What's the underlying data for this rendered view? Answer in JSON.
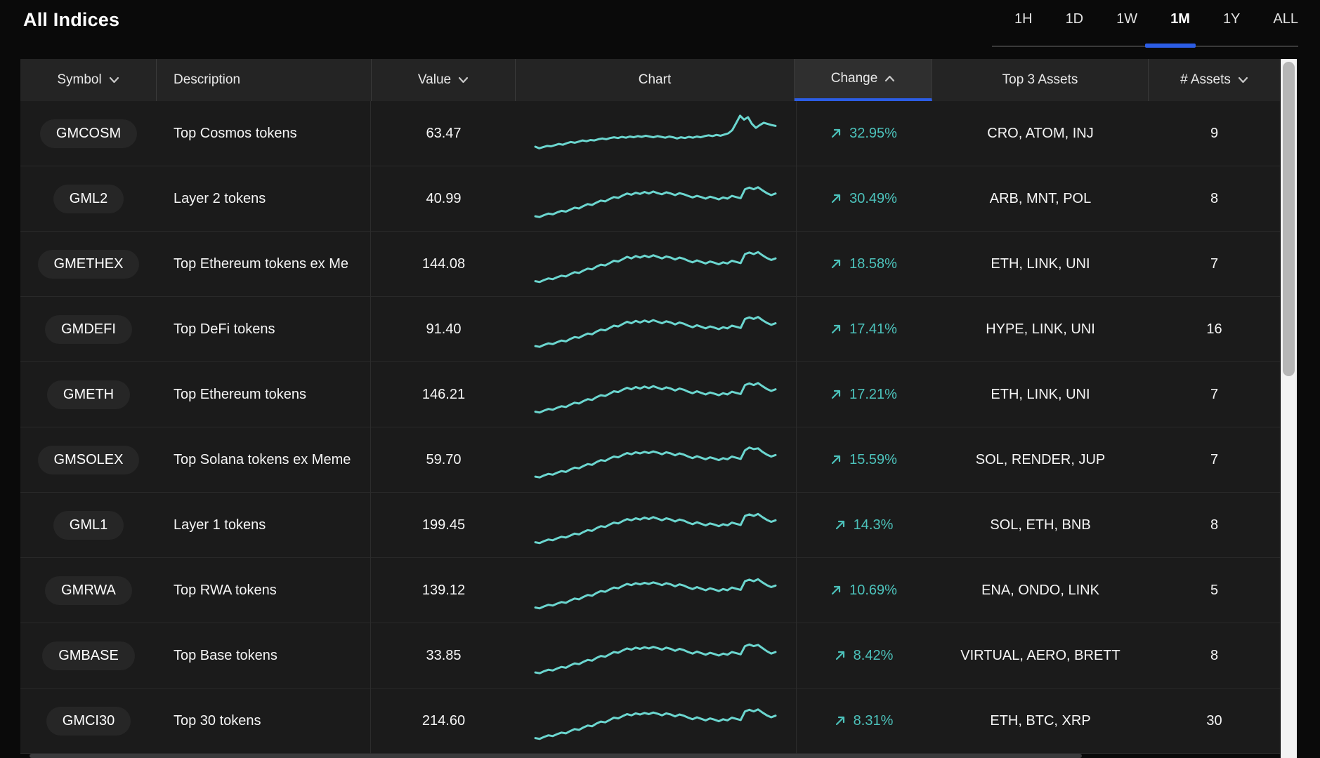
{
  "title": "All Indices",
  "timeframes": {
    "options": [
      "1H",
      "1D",
      "1W",
      "1M",
      "1Y",
      "ALL"
    ],
    "active": "1M"
  },
  "colors": {
    "accent": "#2c5de5",
    "change_positive": "#4cc2bb",
    "sparkline": "#6bd6cf",
    "header_bg": "#242424",
    "row_bg": "#1b1b1b",
    "page_bg": "#0a0a0a"
  },
  "table": {
    "columns": [
      {
        "label": "Symbol",
        "sort": "desc",
        "active": false
      },
      {
        "label": "Description",
        "sort": "",
        "active": false
      },
      {
        "label": "Value",
        "sort": "desc",
        "active": false
      },
      {
        "label": "Chart",
        "sort": "",
        "active": false
      },
      {
        "label": "Change",
        "sort": "asc",
        "active": true
      },
      {
        "label": "Top 3 Assets",
        "sort": "",
        "active": false
      },
      {
        "label": "# Assets",
        "sort": "desc",
        "active": false
      }
    ],
    "rows": [
      {
        "symbol": "GMCOSM",
        "description": "Top Cosmos tokens",
        "value": "63.47",
        "trend": "up",
        "change": "32.95%",
        "top3": "CRO, ATOM, INJ",
        "assets": "9",
        "spark": [
          16,
          12,
          15,
          18,
          17,
          20,
          23,
          21,
          25,
          28,
          26,
          29,
          32,
          30,
          33,
          32,
          35,
          37,
          35,
          38,
          40,
          38,
          41,
          39,
          42,
          40,
          43,
          41,
          44,
          42,
          40,
          43,
          41,
          39,
          42,
          40,
          37,
          40,
          38,
          41,
          39,
          42,
          40,
          43,
          45,
          43,
          46,
          44,
          47,
          50,
          58,
          76,
          95,
          85,
          91,
          74,
          64,
          71,
          77,
          74,
          71,
          69
        ]
      },
      {
        "symbol": "GML2",
        "description": "Layer 2 tokens",
        "value": "40.99",
        "trend": "up",
        "change": "30.49%",
        "top3": "ARB, MNT, POL",
        "assets": "8",
        "spark": [
          5,
          3,
          8,
          12,
          10,
          15,
          19,
          17,
          22,
          27,
          25,
          31,
          36,
          34,
          40,
          45,
          43,
          49,
          54,
          52,
          58,
          63,
          60,
          65,
          62,
          67,
          63,
          68,
          64,
          61,
          66,
          63,
          59,
          64,
          61,
          57,
          53,
          57,
          54,
          50,
          55,
          52,
          48,
          53,
          50,
          57,
          54,
          51,
          74,
          78,
          74,
          79,
          71,
          64,
          59,
          63
        ]
      },
      {
        "symbol": "GMETHEX",
        "description": "Top Ethereum tokens ex Me",
        "value": "144.08",
        "trend": "up",
        "change": "18.58%",
        "top3": "ETH, LINK, UNI",
        "assets": "7",
        "spark": [
          6,
          4,
          9,
          13,
          11,
          16,
          20,
          18,
          24,
          29,
          27,
          33,
          38,
          36,
          43,
          48,
          46,
          52,
          58,
          56,
          62,
          68,
          64,
          70,
          66,
          71,
          67,
          72,
          68,
          64,
          69,
          66,
          61,
          66,
          63,
          58,
          54,
          59,
          55,
          51,
          56,
          53,
          49,
          54,
          51,
          58,
          55,
          52,
          75,
          79,
          75,
          80,
          72,
          65,
          60,
          64
        ]
      },
      {
        "symbol": "GMDEFI",
        "description": "Top DeFi tokens",
        "value": "91.40",
        "trend": "up",
        "change": "17.41%",
        "top3": "HYPE, LINK, UNI",
        "assets": "16",
        "spark": [
          7,
          5,
          10,
          14,
          12,
          17,
          21,
          19,
          25,
          30,
          28,
          34,
          39,
          37,
          44,
          49,
          47,
          53,
          59,
          57,
          63,
          69,
          65,
          71,
          67,
          72,
          68,
          73,
          69,
          65,
          70,
          67,
          62,
          67,
          64,
          59,
          55,
          60,
          56,
          52,
          57,
          54,
          50,
          55,
          52,
          59,
          56,
          53,
          76,
          80,
          76,
          81,
          73,
          66,
          61,
          65
        ]
      },
      {
        "symbol": "GMETH",
        "description": "Top Ethereum tokens",
        "value": "146.21",
        "trend": "up",
        "change": "17.21%",
        "top3": "ETH, LINK, UNI",
        "assets": "7",
        "spark": [
          6,
          4,
          9,
          13,
          11,
          16,
          20,
          18,
          24,
          29,
          27,
          33,
          38,
          36,
          43,
          48,
          46,
          52,
          58,
          56,
          62,
          67,
          63,
          69,
          65,
          70,
          66,
          71,
          67,
          63,
          68,
          65,
          60,
          65,
          62,
          57,
          53,
          58,
          54,
          50,
          55,
          52,
          48,
          53,
          50,
          57,
          54,
          51,
          74,
          78,
          74,
          79,
          71,
          64,
          59,
          63
        ]
      },
      {
        "symbol": "GMSOLEX",
        "description": "Top Solana tokens ex Meme",
        "value": "59.70",
        "trend": "up",
        "change": "15.59%",
        "top3": "SOL, RENDER, JUP",
        "assets": "7",
        "spark": [
          7,
          5,
          10,
          14,
          12,
          17,
          21,
          19,
          25,
          30,
          28,
          34,
          39,
          37,
          44,
          49,
          47,
          53,
          58,
          56,
          62,
          67,
          64,
          69,
          66,
          70,
          67,
          71,
          68,
          64,
          69,
          66,
          61,
          66,
          63,
          58,
          54,
          59,
          55,
          51,
          56,
          53,
          49,
          54,
          51,
          58,
          55,
          52,
          74,
          81,
          77,
          79,
          70,
          63,
          58,
          62
        ]
      },
      {
        "symbol": "GML1",
        "description": "Layer 1 tokens",
        "value": "199.45",
        "trend": "up",
        "change": "14.3%",
        "top3": "SOL, ETH, BNB",
        "assets": "8",
        "spark": [
          6,
          4,
          9,
          13,
          11,
          16,
          20,
          18,
          23,
          28,
          26,
          32,
          37,
          35,
          42,
          47,
          45,
          51,
          56,
          54,
          60,
          65,
          62,
          67,
          64,
          69,
          65,
          70,
          66,
          62,
          67,
          64,
          59,
          64,
          61,
          56,
          52,
          57,
          53,
          49,
          54,
          51,
          47,
          52,
          49,
          56,
          53,
          50,
          73,
          77,
          73,
          78,
          70,
          63,
          58,
          62
        ]
      },
      {
        "symbol": "GMRWA",
        "description": "Top RWA tokens",
        "value": "139.12",
        "trend": "up",
        "change": "10.69%",
        "top3": "ENA, ONDO, LINK",
        "assets": "5",
        "spark": [
          6,
          4,
          9,
          13,
          11,
          16,
          20,
          18,
          24,
          29,
          27,
          33,
          38,
          36,
          43,
          48,
          46,
          52,
          57,
          55,
          61,
          66,
          63,
          68,
          65,
          69,
          66,
          70,
          67,
          63,
          68,
          65,
          60,
          65,
          62,
          57,
          53,
          58,
          54,
          50,
          55,
          52,
          48,
          53,
          50,
          57,
          54,
          51,
          73,
          77,
          73,
          78,
          70,
          63,
          58,
          62
        ]
      },
      {
        "symbol": "GMBASE",
        "description": "Top Base tokens",
        "value": "33.85",
        "trend": "up",
        "change": "8.42%",
        "top3": "VIRTUAL, AERO, BRETT",
        "assets": "8",
        "spark": [
          7,
          5,
          10,
          14,
          12,
          17,
          21,
          19,
          25,
          30,
          28,
          34,
          39,
          37,
          44,
          49,
          47,
          53,
          59,
          57,
          63,
          68,
          65,
          70,
          67,
          71,
          68,
          72,
          69,
          65,
          70,
          67,
          62,
          67,
          64,
          59,
          55,
          60,
          56,
          52,
          57,
          54,
          50,
          55,
          52,
          59,
          56,
          53,
          74,
          78,
          74,
          77,
          69,
          61,
          55,
          59
        ]
      },
      {
        "symbol": "GMCI30",
        "description": "Top 30 tokens",
        "value": "214.60",
        "trend": "up",
        "change": "8.31%",
        "top3": "ETH, BTC, XRP",
        "assets": "30",
        "spark": [
          6,
          4,
          9,
          13,
          11,
          16,
          20,
          18,
          24,
          29,
          27,
          33,
          38,
          36,
          43,
          48,
          46,
          52,
          58,
          56,
          62,
          67,
          64,
          69,
          66,
          70,
          67,
          71,
          68,
          64,
          69,
          66,
          61,
          66,
          63,
          58,
          54,
          59,
          55,
          51,
          56,
          53,
          49,
          54,
          51,
          58,
          55,
          52,
          74,
          78,
          74,
          79,
          71,
          64,
          59,
          63
        ]
      }
    ]
  }
}
